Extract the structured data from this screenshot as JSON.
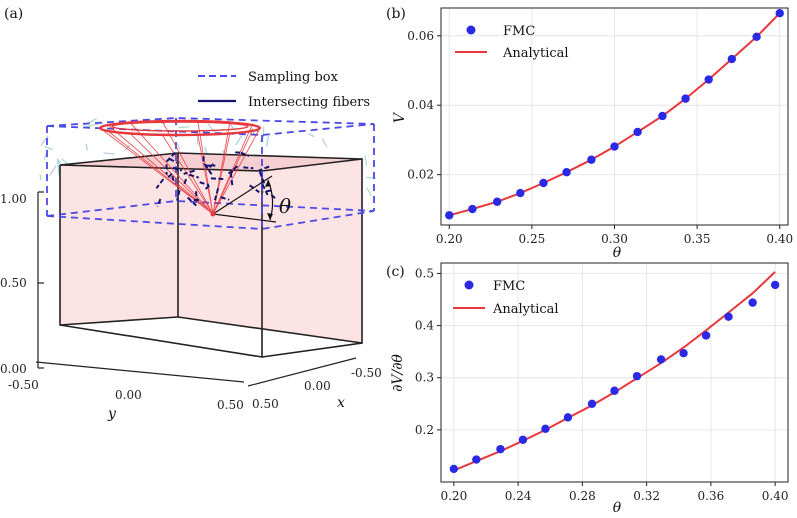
{
  "panel_a": {
    "label": "(a)",
    "legend": [
      {
        "name": "Sampling box",
        "style": "dashed",
        "color": "#4a4ae8"
      },
      {
        "name": "Intersecting fibers",
        "style": "solid",
        "color": "#14146e"
      }
    ],
    "angle_label": "θ",
    "z_ticks": [
      "1.00",
      "0.50",
      "0.00"
    ],
    "y_ticks": [
      "-0.50",
      "0.00",
      "0.50"
    ],
    "y_label": "y",
    "x_ticks": [
      "0.50",
      "0.00",
      "-0.50"
    ],
    "x_label": "x",
    "colors": {
      "cube_fill": "#fde4e4",
      "cone": "#e8383c",
      "box": "#4a4ae8",
      "fibers": "#14146e"
    }
  },
  "chart_data": [
    {
      "panel": "(b)",
      "type": "scatter",
      "xlabel": "θ",
      "ylabel": "V",
      "xlim": [
        0.195,
        0.405
      ],
      "ylim": [
        0.0055,
        0.068
      ],
      "xticks": [
        0.2,
        0.25,
        0.3,
        0.35,
        0.4
      ],
      "xtick_labels": [
        "0.20",
        "0.25",
        "0.30",
        "0.35",
        "0.40"
      ],
      "yticks": [
        0.02,
        0.04,
        0.06
      ],
      "ytick_labels": [
        "0.02",
        "0.04",
        "0.06"
      ],
      "grid": true,
      "legend_position": "top-left",
      "series": [
        {
          "name": "FMC",
          "kind": "scatter",
          "color": "#2a2ae6",
          "x": [
            0.2,
            0.214,
            0.229,
            0.243,
            0.257,
            0.271,
            0.286,
            0.3,
            0.314,
            0.329,
            0.343,
            0.357,
            0.371,
            0.386,
            0.4
          ],
          "y": [
            0.0083,
            0.0101,
            0.0122,
            0.0147,
            0.0176,
            0.0207,
            0.0243,
            0.0281,
            0.0323,
            0.0369,
            0.0419,
            0.0474,
            0.0533,
            0.0597,
            0.0665
          ]
        },
        {
          "name": "Analytical",
          "kind": "line",
          "color": "#e8383c",
          "x": [
            0.2,
            0.214,
            0.229,
            0.243,
            0.257,
            0.271,
            0.286,
            0.3,
            0.314,
            0.329,
            0.343,
            0.357,
            0.371,
            0.386,
            0.4
          ],
          "y": [
            0.0083,
            0.0101,
            0.0122,
            0.0147,
            0.0176,
            0.0207,
            0.0243,
            0.0281,
            0.0323,
            0.0369,
            0.0419,
            0.0474,
            0.0533,
            0.0597,
            0.0665
          ]
        }
      ]
    },
    {
      "panel": "(c)",
      "type": "scatter",
      "xlabel": "θ",
      "ylabel": "∂V/∂θ",
      "xlim": [
        0.192,
        0.408
      ],
      "ylim": [
        0.1,
        0.52
      ],
      "xticks": [
        0.2,
        0.24,
        0.28,
        0.32,
        0.36,
        0.4
      ],
      "xtick_labels": [
        "0.20",
        "0.24",
        "0.28",
        "0.32",
        "0.36",
        "0.40"
      ],
      "yticks": [
        0.2,
        0.3,
        0.4,
        0.5
      ],
      "ytick_labels": [
        "0.2",
        "0.3",
        "0.4",
        "0.5"
      ],
      "grid": true,
      "legend_position": "top-left",
      "series": [
        {
          "name": "FMC",
          "kind": "scatter",
          "color": "#2a2ae6",
          "x": [
            0.2,
            0.214,
            0.229,
            0.243,
            0.257,
            0.271,
            0.286,
            0.3,
            0.314,
            0.329,
            0.343,
            0.357,
            0.371,
            0.386,
            0.4
          ],
          "y": [
            0.125,
            0.143,
            0.163,
            0.181,
            0.202,
            0.224,
            0.25,
            0.275,
            0.303,
            0.335,
            0.347,
            0.381,
            0.417,
            0.444,
            0.478
          ]
        },
        {
          "name": "Analytical",
          "kind": "line",
          "color": "#e8383c",
          "x": [
            0.2,
            0.214,
            0.229,
            0.243,
            0.257,
            0.271,
            0.286,
            0.3,
            0.314,
            0.329,
            0.343,
            0.357,
            0.371,
            0.386,
            0.4
          ],
          "y": [
            0.122,
            0.14,
            0.159,
            0.179,
            0.2,
            0.223,
            0.247,
            0.272,
            0.299,
            0.328,
            0.358,
            0.391,
            0.425,
            0.462,
            0.503
          ]
        }
      ]
    }
  ]
}
